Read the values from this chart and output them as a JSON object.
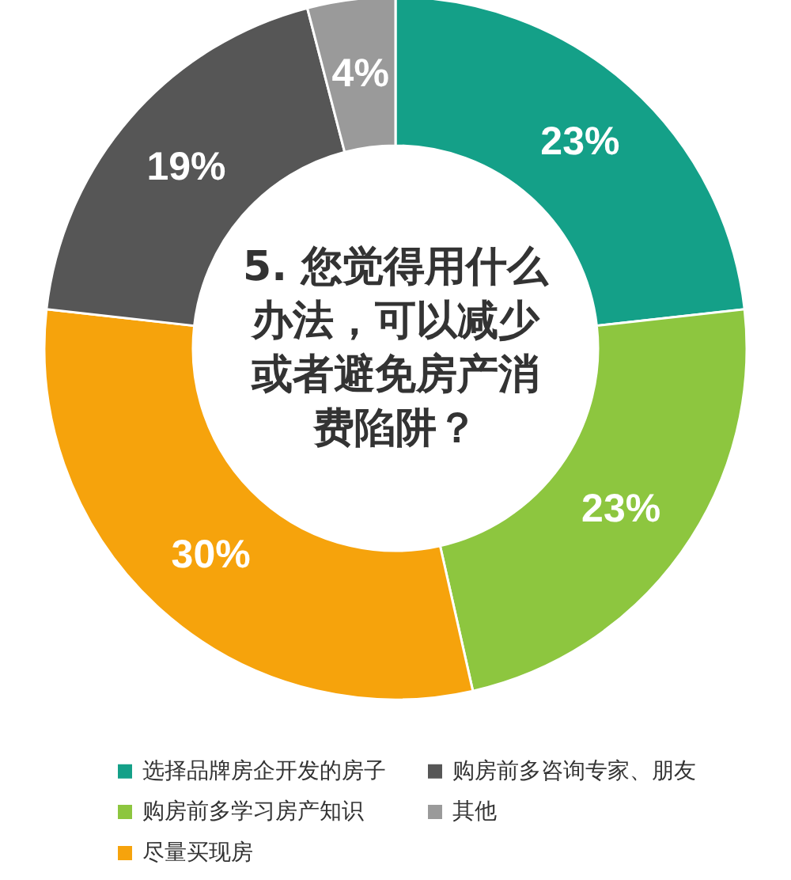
{
  "chart_data": {
    "type": "donut",
    "title": "5. 您觉得用什么办法，可以减少或者避免房产消费陷阱？",
    "categories": [
      "选择品牌房企开发的房子",
      "购房前多学习房产知识",
      "尽量买现房",
      "购房前多咨询专家、朋友",
      "其他"
    ],
    "values": [
      23,
      23,
      30,
      19,
      4
    ],
    "colors": [
      "#14a088",
      "#8dc63f",
      "#f6a30c",
      "#565656",
      "#9a9a9a"
    ],
    "value_labels": [
      "23%",
      "23%",
      "30%",
      "19%",
      "4%"
    ],
    "legend": "bottom"
  }
}
